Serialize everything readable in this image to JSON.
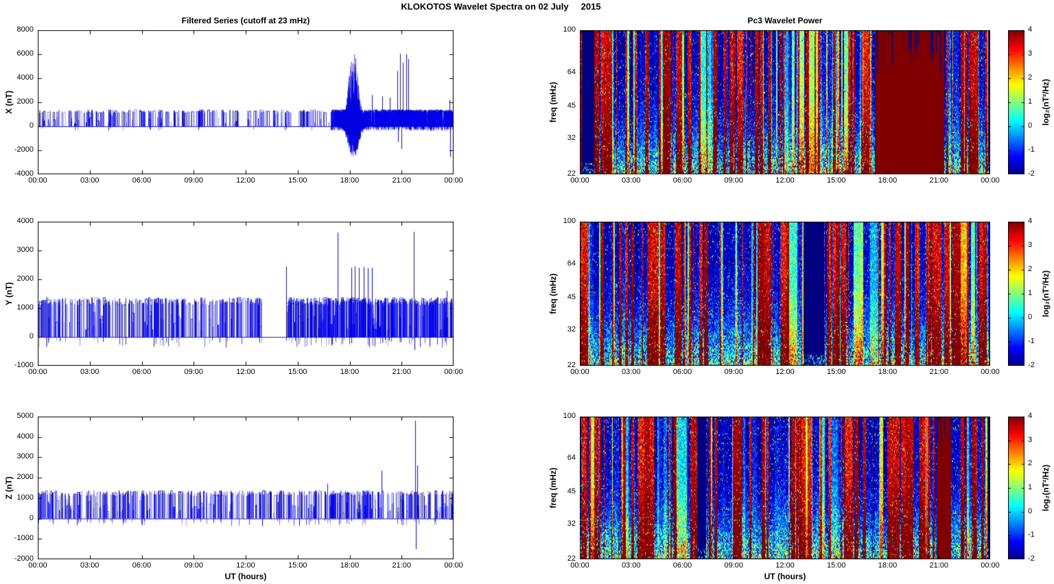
{
  "figure": {
    "title": "KLOKOTOS Wavelet Spectra on 02 July     2015"
  },
  "left_column": {
    "title": "Filtered Series (cutoff at 23 mHz)"
  },
  "right_column": {
    "title": "Pc3 Wavelet Power"
  },
  "axes": {
    "xlabel": "UT (hours)",
    "x_ticklabels": [
      "00:00",
      "03:00",
      "06:00",
      "09:00",
      "12:00",
      "15:00",
      "18:00",
      "21:00",
      "00:00"
    ],
    "x_hours": [
      0,
      3,
      6,
      9,
      12,
      15,
      18,
      21,
      24
    ],
    "x_range_hours": [
      0,
      24
    ]
  },
  "colorbar": {
    "label": "log₂(nT²/Hz)",
    "ticks": [
      4,
      3,
      2,
      1,
      0,
      -1,
      -2
    ],
    "vlim": [
      -2,
      4
    ],
    "colormap": "jet"
  },
  "colors": {
    "series_line": "#0000ee",
    "axis": "#000000",
    "background": "#ffffff",
    "jet_min": "#00007f",
    "jet_max": "#7f0000"
  },
  "chart_data": [
    {
      "id": "x-filtered-series",
      "type": "line",
      "ylabel": "X (nT)",
      "ylim": [
        -4000,
        8000
      ],
      "yticks": [
        8000,
        6000,
        4000,
        2000,
        0,
        -2000,
        -4000
      ],
      "baseline": 0,
      "plateau_nT": 1250,
      "regions": [
        {
          "t0": 0.05,
          "t1": 16.85,
          "count": 240,
          "neg": 0.08
        },
        {
          "t0": 16.9,
          "t1": 23.92,
          "count": 950,
          "neg": 0.3
        }
      ],
      "bursts": [
        {
          "t0": 17.45,
          "t1": 19.05,
          "peak_t": 18.2,
          "vmax": 6400,
          "vmin": -2900
        }
      ],
      "events": [
        {
          "t": 19.3,
          "v": 2600
        },
        {
          "t": 19.9,
          "v": 2500
        },
        {
          "t": 20.3,
          "v": 2400
        },
        {
          "t": 20.75,
          "v": 4600
        },
        {
          "t": 20.9,
          "v": 6050
        },
        {
          "t": 21.05,
          "v": 5300
        },
        {
          "t": 21.25,
          "v": 6000
        },
        {
          "t": 21.4,
          "v": 5600
        },
        {
          "t": 20.8,
          "v": -1300
        },
        {
          "t": 21.0,
          "v": -1900
        },
        {
          "t": 23.75,
          "v": 2200
        },
        {
          "t": 23.8,
          "v": -2550
        }
      ],
      "seed": 11
    },
    {
      "id": "y-filtered-series",
      "type": "line",
      "ylabel": "Y (nT)",
      "ylim": [
        -1000,
        4000
      ],
      "yticks": [
        4000,
        3000,
        2000,
        1000,
        0,
        -1000
      ],
      "baseline": 0,
      "plateau_nT": 1250,
      "quiet_gap_hours": [
        13.0,
        14.25
      ],
      "regions": [
        {
          "t0": 0.05,
          "t1": 12.95,
          "count": 300,
          "neg": 0.12
        },
        {
          "t0": 14.3,
          "t1": 23.92,
          "count": 430,
          "neg": 0.12
        }
      ],
      "bursts": [],
      "events": [
        {
          "t": 14.35,
          "v": 2450
        },
        {
          "t": 17.3,
          "v": 3620
        },
        {
          "t": 18.1,
          "v": 2400
        },
        {
          "t": 18.3,
          "v": 2450
        },
        {
          "t": 18.55,
          "v": 2400
        },
        {
          "t": 18.8,
          "v": 2430
        },
        {
          "t": 19.05,
          "v": 2380
        },
        {
          "t": 19.3,
          "v": 2400
        },
        {
          "t": 21.7,
          "v": 3650
        },
        {
          "t": 21.75,
          "v": -450
        },
        {
          "t": 23.6,
          "v": 1600
        }
      ],
      "seed": 12
    },
    {
      "id": "z-filtered-series",
      "type": "line",
      "ylabel": "Z (nT)",
      "ylim": [
        -2000,
        5000
      ],
      "yticks": [
        5000,
        4000,
        3000,
        2000,
        1000,
        0,
        -1000,
        -2000
      ],
      "baseline": 0,
      "plateau_nT": 1250,
      "regions": [
        {
          "t0": 0.05,
          "t1": 23.92,
          "count": 560,
          "neg": 0.12
        }
      ],
      "bursts": [],
      "events": [
        {
          "t": 16.7,
          "v": 1700
        },
        {
          "t": 19.85,
          "v": 2350
        },
        {
          "t": 21.8,
          "v": 4800
        },
        {
          "t": 21.82,
          "v": -1500
        },
        {
          "t": 21.9,
          "v": 2600
        }
      ],
      "seed": 13
    },
    {
      "id": "x-wavelet-power",
      "type": "heatmap",
      "ylabel": "freq (mHz)",
      "yticks": [
        100,
        64,
        45,
        32,
        22
      ],
      "flim": [
        22,
        100
      ],
      "log_freq": true,
      "vlim": [
        -2,
        4
      ],
      "stripes": {
        "p_blue": 0.42,
        "p_red": 0.4,
        "bottom_boost": 4.2
      },
      "features": [
        {
          "kind": "blue",
          "t0": 0.12,
          "t1": 0.82
        },
        {
          "kind": "red",
          "t0": 17.25,
          "t1": 21.3
        },
        {
          "kind": "blue",
          "t0": 23.86,
          "t1": 24
        }
      ],
      "seed": 21
    },
    {
      "id": "y-wavelet-power",
      "type": "heatmap",
      "ylabel": "freq (mHz)",
      "yticks": [
        100,
        64,
        45,
        32,
        22
      ],
      "flim": [
        22,
        100
      ],
      "log_freq": true,
      "vlim": [
        -2,
        4
      ],
      "stripes": {
        "p_blue": 0.46,
        "p_red": 0.37,
        "bottom_boost": 4.2
      },
      "features": [
        {
          "kind": "blue",
          "t0": 13.05,
          "t1": 14.25
        },
        {
          "kind": "blue",
          "t0": 23.9,
          "t1": 24
        }
      ],
      "seed": 22
    },
    {
      "id": "z-wavelet-power",
      "type": "heatmap",
      "ylabel": "freq (mHz)",
      "yticks": [
        100,
        64,
        45,
        32,
        22
      ],
      "flim": [
        22,
        100
      ],
      "log_freq": true,
      "vlim": [
        -2,
        4
      ],
      "stripes": {
        "p_blue": 0.41,
        "p_red": 0.41,
        "bottom_boost": 4.2
      },
      "features": [
        {
          "kind": "blue",
          "t0": 6.85,
          "t1": 7.35
        },
        {
          "kind": "red",
          "t0": 20.85,
          "t1": 21.7
        },
        {
          "kind": "blue",
          "t0": 23.8,
          "t1": 24
        }
      ],
      "seed": 23
    }
  ]
}
